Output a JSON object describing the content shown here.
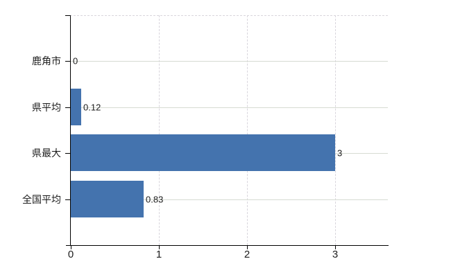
{
  "chart_data": {
    "type": "bar",
    "orientation": "horizontal",
    "title": "",
    "xlabel": "",
    "ylabel": "",
    "categories": [
      "鹿角市",
      "県平均",
      "県最大",
      "全国平均"
    ],
    "values": [
      0,
      0.12,
      3,
      0.83
    ],
    "value_labels": [
      "0",
      "0.12",
      "3",
      "0.83"
    ],
    "x_ticks": [
      {
        "value": 0,
        "label": "0"
      },
      {
        "value": 1,
        "label": "1"
      },
      {
        "value": 2,
        "label": "2"
      },
      {
        "value": 3,
        "label": "3"
      }
    ],
    "xlim": [
      0,
      3.6
    ],
    "grid": "on",
    "legend": "none",
    "bar_color": "#4473ae"
  },
  "colors": {
    "bar": "#4473ae",
    "axis": "#000000",
    "gridh": "#d6dbd2",
    "gridv": "#d8d5dc",
    "text": "#1c1c1c",
    "background": "#ffffff"
  }
}
